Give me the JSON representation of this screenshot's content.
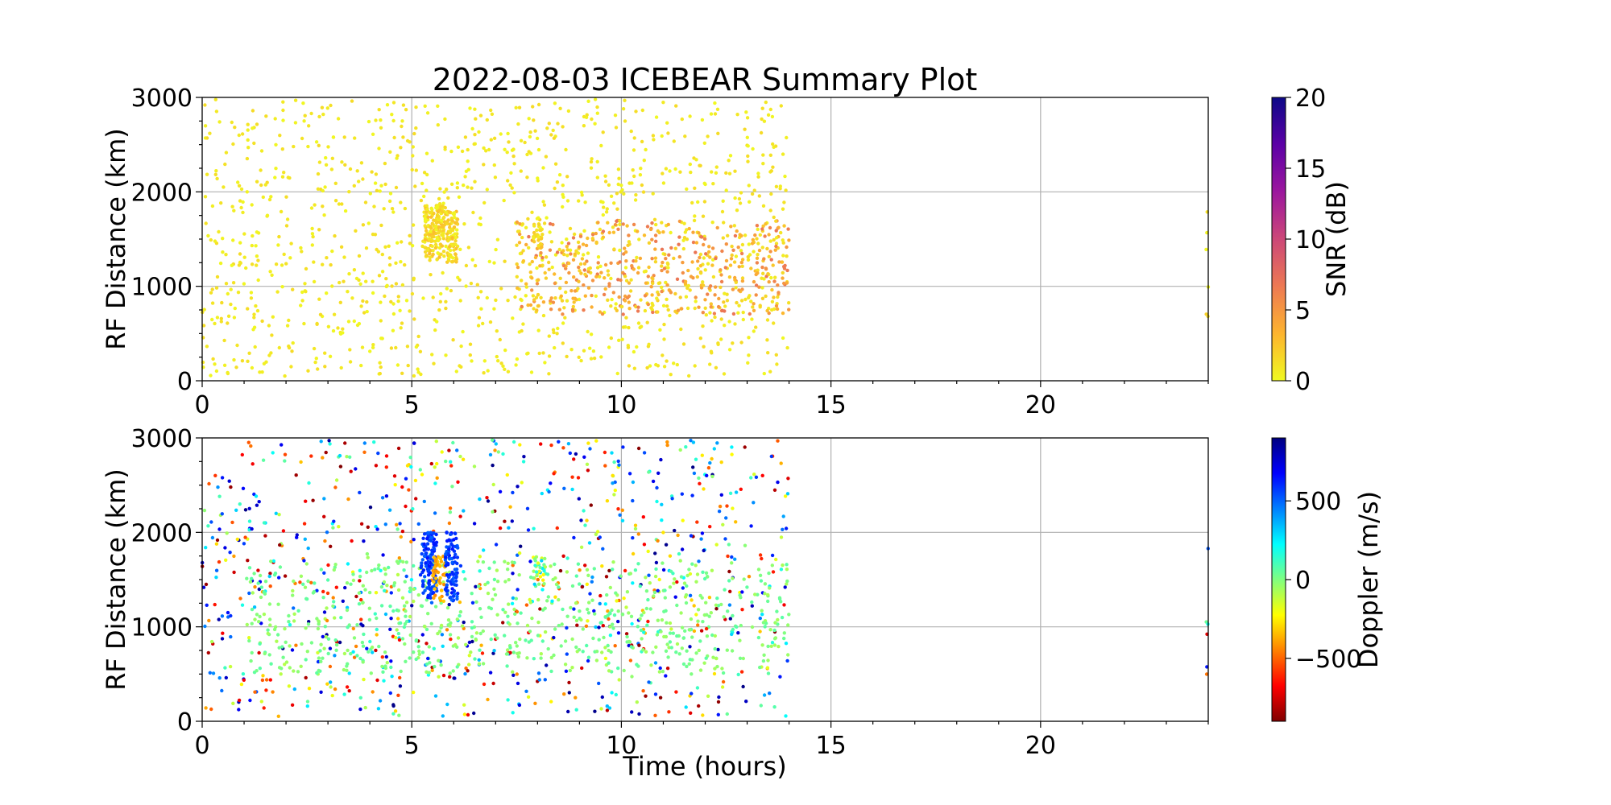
{
  "figure": {
    "title": "2022-08-03 ICEBEAR Summary Plot",
    "xlabel": "Time (hours)"
  },
  "chart_data": [
    {
      "type": "scatter",
      "panel": "snr",
      "ylabel": "RF Distance (km)",
      "xlim": [
        0,
        24
      ],
      "ylim": [
        0,
        3000
      ],
      "x_ticks": [
        0,
        5,
        10,
        15,
        20
      ],
      "y_ticks": [
        0,
        1000,
        2000,
        3000
      ],
      "grid": true,
      "colorbar": {
        "label": "SNR (dB)",
        "range": [
          0,
          20
        ],
        "ticks": [
          0,
          5,
          10,
          15,
          20
        ],
        "tick_labels": [
          "0",
          "5",
          "10",
          "15",
          "20"
        ],
        "colormap": "plasma_r",
        "stops": [
          "#f0f921",
          "#fdb42f",
          "#ed7953",
          "#cc4778",
          "#9c179e",
          "#5c01a6",
          "#0d0887"
        ]
      },
      "scatter_clusters": [
        {
          "name": "background",
          "x_range": [
            0.0,
            14.0
          ],
          "y_range": [
            50,
            2980
          ],
          "count": 1100,
          "value_range": [
            0,
            1.5
          ]
        },
        {
          "name": "band",
          "x_range": [
            7.5,
            14.0
          ],
          "y_range": [
            700,
            1700
          ],
          "count": 500,
          "value_range": [
            0.5,
            7
          ]
        },
        {
          "name": "feature-1",
          "x_range": [
            5.3,
            5.8
          ],
          "y_range": [
            1300,
            1900
          ],
          "count": 160,
          "value_range": [
            0,
            3
          ]
        },
        {
          "name": "feature-2",
          "x_range": [
            5.8,
            6.1
          ],
          "y_range": [
            1250,
            1800
          ],
          "count": 90,
          "value_range": [
            0,
            3
          ]
        },
        {
          "name": "feature-3",
          "x_range": [
            7.9,
            8.1
          ],
          "y_range": [
            1400,
            1750
          ],
          "count": 30,
          "value_range": [
            0,
            3
          ]
        },
        {
          "name": "edge-24h",
          "x_range": [
            23.95,
            24.0
          ],
          "y_range": [
            400,
            2000
          ],
          "count": 6,
          "value_range": [
            0,
            2
          ]
        }
      ]
    },
    {
      "type": "scatter",
      "panel": "doppler",
      "ylabel": "RF Distance (km)",
      "xlabel": "Time (hours)",
      "xlim": [
        0,
        24
      ],
      "ylim": [
        0,
        3000
      ],
      "x_ticks": [
        0,
        5,
        10,
        15,
        20
      ],
      "y_ticks": [
        0,
        1000,
        2000,
        3000
      ],
      "grid": true,
      "colorbar": {
        "label": "Doppler (m/s)",
        "range": [
          -900,
          900
        ],
        "ticks": [
          -500,
          0,
          500
        ],
        "tick_labels": [
          "−500",
          "0",
          "500"
        ],
        "colormap": "jet_r",
        "stops": [
          "#800000",
          "#ff0000",
          "#ff8000",
          "#ffff00",
          "#80ff80",
          "#00ffff",
          "#0080ff",
          "#0000ff",
          "#000080"
        ]
      },
      "scatter_clusters": [
        {
          "name": "background",
          "x_range": [
            0.0,
            14.0
          ],
          "y_range": [
            50,
            2980
          ],
          "count": 900,
          "value_range": [
            -900,
            900
          ]
        },
        {
          "name": "band",
          "x_range": [
            1.0,
            14.0
          ],
          "y_range": [
            500,
            1700
          ],
          "count": 650,
          "value_range": [
            -80,
            80
          ]
        },
        {
          "name": "feature-1",
          "x_range": [
            5.2,
            5.6
          ],
          "y_range": [
            1300,
            2000
          ],
          "count": 120,
          "value_range": [
            500,
            650
          ]
        },
        {
          "name": "feature-2",
          "x_range": [
            5.5,
            5.8
          ],
          "y_range": [
            1250,
            1750
          ],
          "count": 50,
          "value_range": [
            -450,
            -300
          ]
        },
        {
          "name": "feature-3",
          "x_range": [
            5.8,
            6.1
          ],
          "y_range": [
            1250,
            2000
          ],
          "count": 90,
          "value_range": [
            500,
            650
          ]
        },
        {
          "name": "feature-4",
          "x_range": [
            7.9,
            8.2
          ],
          "y_range": [
            1450,
            1750
          ],
          "count": 30,
          "value_range": [
            -300,
            350
          ]
        },
        {
          "name": "edge-24h",
          "x_range": [
            23.95,
            24.0
          ],
          "y_range": [
            400,
            2000
          ],
          "count": 6,
          "value_range": [
            -900,
            900
          ]
        }
      ]
    }
  ]
}
